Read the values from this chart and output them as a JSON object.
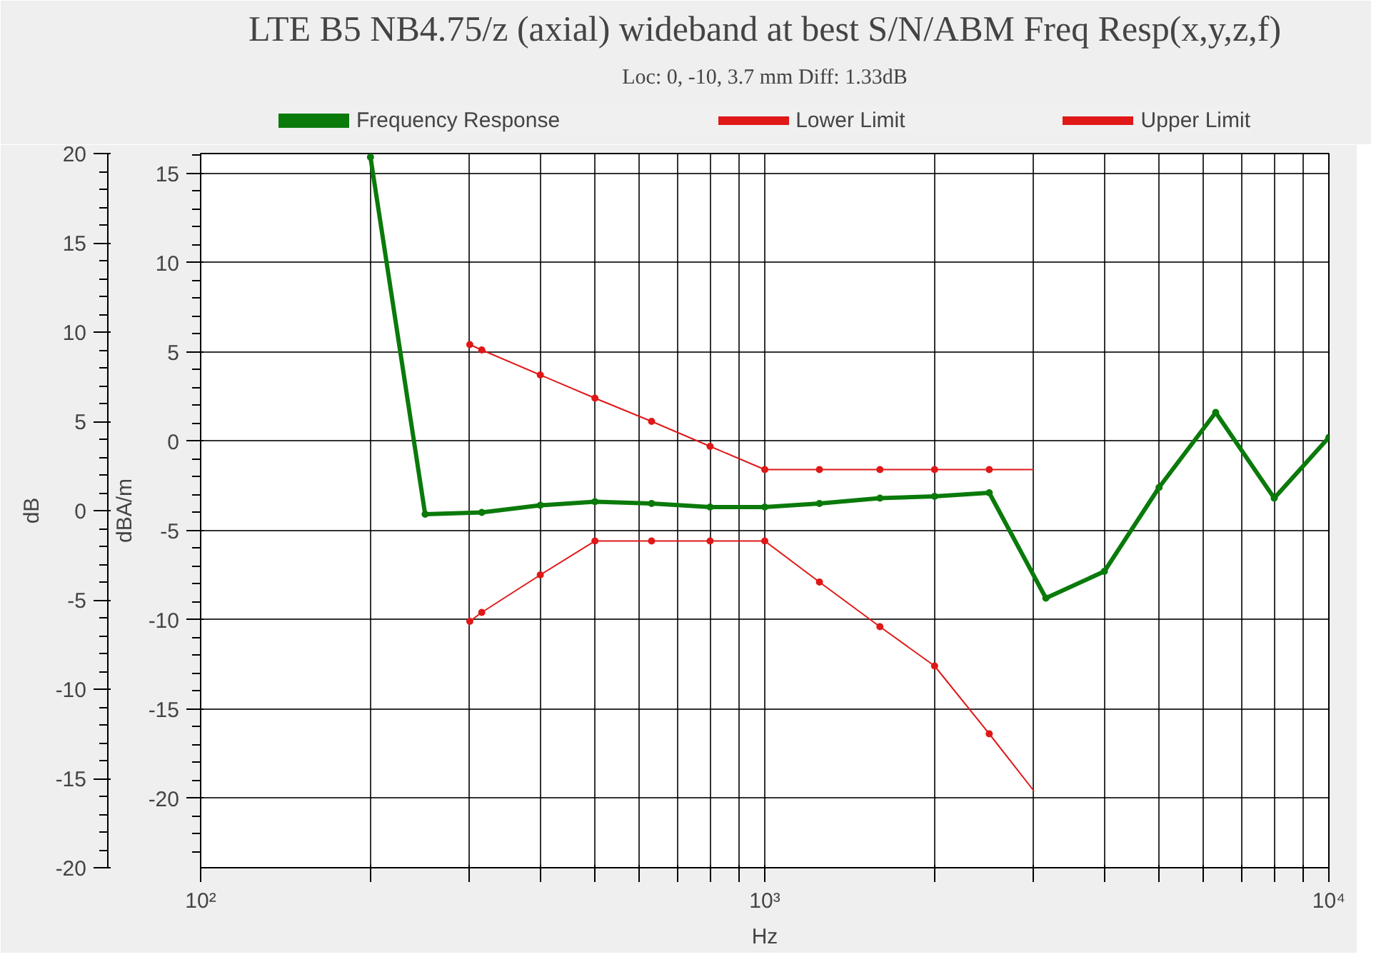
{
  "chart_data": {
    "type": "line",
    "title": "LTE B5 NB4.75/z (axial) wideband at best S/N/ABM Freq Resp(x,y,z,f)",
    "subtitle": "Loc: 0, -10, 3.7 mm Diff: 1.33dB",
    "xlabel": "Hz",
    "ylabel": "dB",
    "y2label": "dBA/m",
    "log": "x",
    "grid": true,
    "legend": "top",
    "marker": "circle",
    "line_style": "solid",
    "xlim": [
      100,
      10000
    ],
    "xticks": [
      {
        "value": 100,
        "label": "10²"
      },
      {
        "value": 200,
        "label": null
      },
      {
        "value": 300,
        "label": null
      },
      {
        "value": 400,
        "label": null
      },
      {
        "value": 500,
        "label": null
      },
      {
        "value": 600,
        "label": null
      },
      {
        "value": 700,
        "label": null
      },
      {
        "value": 800,
        "label": null
      },
      {
        "value": 900,
        "label": null
      },
      {
        "value": 1000,
        "label": "10³"
      },
      {
        "value": 2000,
        "label": null
      },
      {
        "value": 3000,
        "label": null
      },
      {
        "value": 4000,
        "label": null
      },
      {
        "value": 5000,
        "label": null
      },
      {
        "value": 6000,
        "label": null
      },
      {
        "value": 7000,
        "label": null
      },
      {
        "value": 8000,
        "label": null
      },
      {
        "value": 9000,
        "label": null
      },
      {
        "value": 10000,
        "label": "10⁴"
      }
    ],
    "ylim": [
      -20,
      20
    ],
    "yticks": [
      -20,
      -15,
      -10,
      -5,
      0,
      5,
      10,
      15,
      20
    ],
    "y2lim": [
      -23.9,
      16.1
    ],
    "y2ticks": [
      -20,
      -15,
      -10,
      -5,
      0,
      5,
      10,
      15
    ],
    "series": [
      {
        "name": "Frequency Response",
        "color": "#0a7a0a",
        "x": [
          200,
          250,
          315,
          400,
          500,
          630,
          800,
          1000,
          1250,
          1600,
          2000,
          2500,
          3150,
          4000,
          5000,
          6300,
          8000,
          10000
        ],
        "values": [
          19.8,
          -0.2,
          -0.1,
          0.3,
          0.5,
          0.4,
          0.2,
          0.2,
          0.4,
          0.7,
          0.8,
          1.0,
          -4.9,
          -3.4,
          1.3,
          5.5,
          0.7,
          4.1
        ]
      },
      {
        "name": "Lower Limit",
        "color": "#e01818",
        "x": [
          300,
          315,
          400,
          500,
          630,
          800,
          1000,
          1250,
          1600,
          2000,
          2500,
          3000
        ],
        "values": [
          -6.2,
          -5.7,
          -3.6,
          -1.7,
          -1.7,
          -1.7,
          -1.7,
          -4.0,
          -6.5,
          -8.7,
          -12.5,
          -15.7
        ]
      },
      {
        "name": "Upper Limit",
        "color": "#e01818",
        "x": [
          300,
          315,
          400,
          500,
          630,
          800,
          1000,
          1250,
          1600,
          2000,
          2500,
          3000
        ],
        "values": [
          9.3,
          9.0,
          7.6,
          6.3,
          5.0,
          3.6,
          2.3,
          2.3,
          2.3,
          2.3,
          2.3,
          2.3
        ]
      }
    ]
  }
}
